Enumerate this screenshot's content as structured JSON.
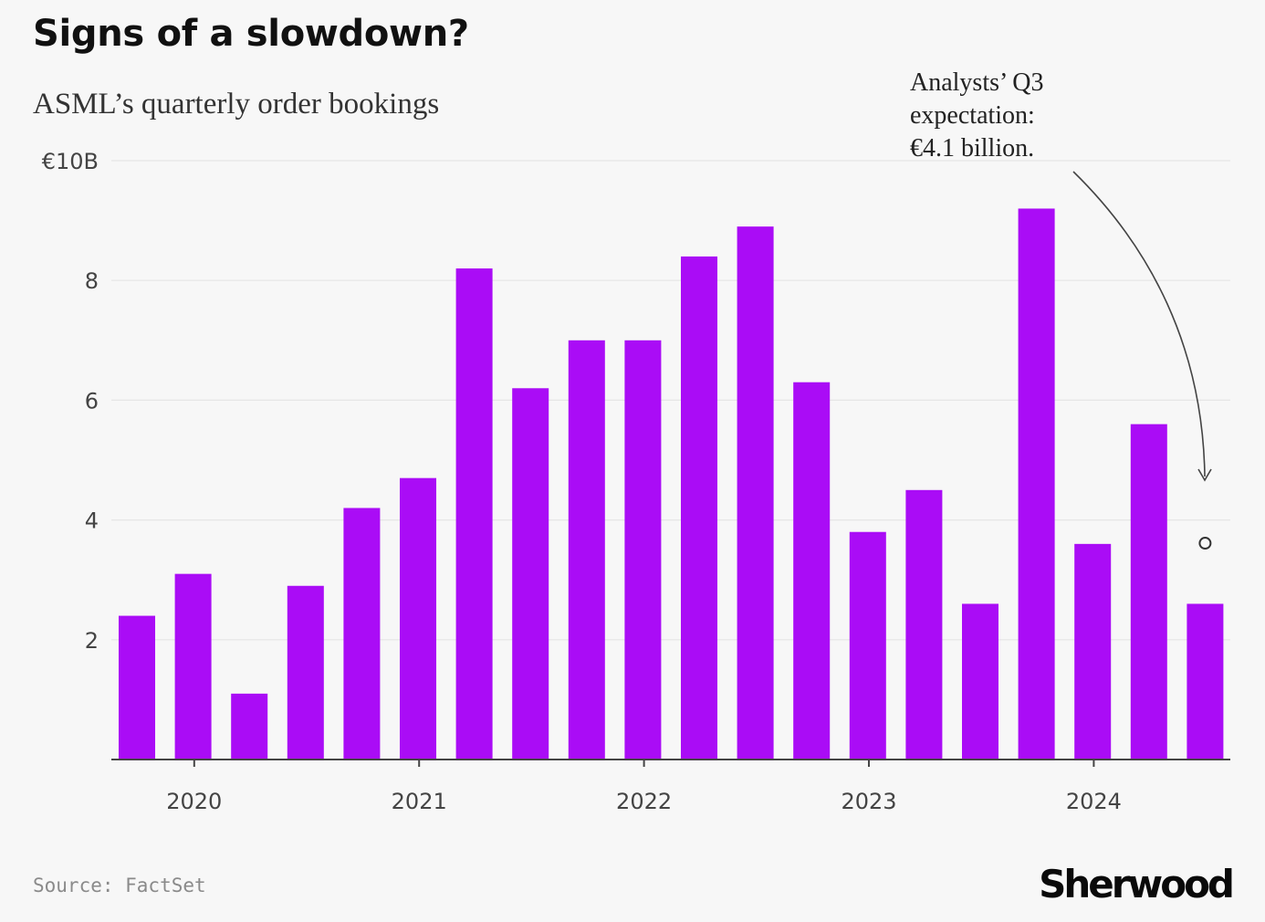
{
  "header": {
    "title": "Signs of a slowdown?",
    "subtitle": "ASML’s quarterly order bookings"
  },
  "footer": {
    "source": "Source: FactSet",
    "brand": "Sherwood"
  },
  "colors": {
    "bar": "#aa0cf6",
    "grid": "#e6e6e6",
    "axis": "#444444"
  },
  "chart_data": {
    "type": "bar",
    "categories": [
      "Q1 2020",
      "Q2 2020",
      "Q3 2020",
      "Q4 2020",
      "Q1 2021",
      "Q2 2021",
      "Q3 2021",
      "Q4 2021",
      "Q1 2022",
      "Q2 2022",
      "Q3 2022",
      "Q4 2022",
      "Q1 2023",
      "Q2 2023",
      "Q3 2023",
      "Q4 2023",
      "Q1 2024",
      "Q2 2024",
      "Q3 2024"
    ],
    "values": [
      2.4,
      3.1,
      1.1,
      2.9,
      4.2,
      4.7,
      8.2,
      6.2,
      7.0,
      7.0,
      8.4,
      8.9,
      6.3,
      3.8,
      4.5,
      2.6,
      9.2,
      3.6,
      5.6
    ],
    "ylim": [
      0,
      10
    ],
    "yticks": [
      2,
      4,
      6,
      8,
      10
    ],
    "ytick_labels": [
      "2",
      "4",
      "6",
      "8",
      "€10B"
    ],
    "xtick_labels": [
      "2020",
      "2021",
      "2022",
      "2023",
      "2024"
    ],
    "extra_bars": [
      {
        "category": "Q4 2024",
        "value": 2.6
      }
    ],
    "expectation": {
      "category": "Q3 2024",
      "value": 4.1,
      "label_lines": [
        "Analysts’ Q3",
        "expectation:",
        "€4.1 billion."
      ]
    },
    "grid": true
  }
}
